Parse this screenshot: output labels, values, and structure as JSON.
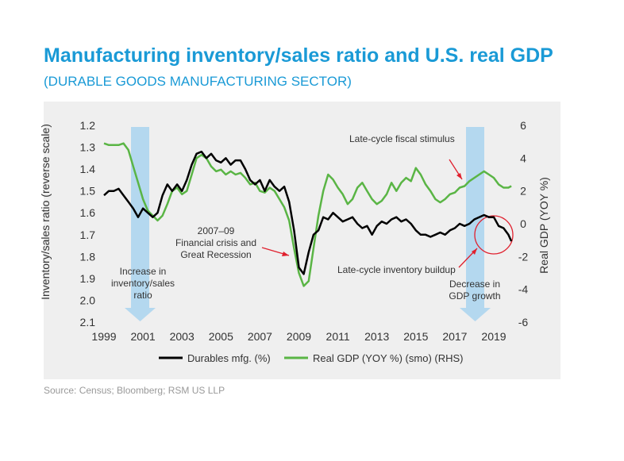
{
  "chart_data": {
    "type": "line",
    "title": "Manufacturing inventory/sales ratio and U.S. real GDP",
    "subtitle": "(DURABLE GOODS MANUFACTURING SECTOR)",
    "source": "Source: Census; Bloomberg; RSM US LLP",
    "y_label": "Inventory/sales ratio (reverse scale)",
    "y2_label": "Real GDP (YOY %)",
    "y_reversed": true,
    "xlim": [
      1999,
      2020.5
    ],
    "xticks": [
      1999,
      2001,
      2003,
      2005,
      2007,
      2009,
      2011,
      2013,
      2015,
      2017,
      2019
    ],
    "ylim": [
      1.2,
      2.1
    ],
    "yticks": [
      1.2,
      1.3,
      1.4,
      1.5,
      1.6,
      1.7,
      1.8,
      1.9,
      {
        "value": 2,
        "label": "2.0"
      },
      2.1
    ],
    "y2lim": [
      -6,
      6
    ],
    "y2ticks": [
      6,
      4,
      2,
      0,
      -2,
      -4,
      -6
    ],
    "annotations": [
      [
        "Late-cycle fiscal stimulus"
      ],
      [
        "2007–09",
        "Financial crisis and",
        "Great Recession"
      ],
      [
        "Late-cycle inventory buildup"
      ],
      [
        "Increase in",
        "inventory/sales",
        "ratio"
      ],
      [
        "Decrease in",
        "GDP growth"
      ]
    ],
    "x": [
      1999,
      1999.25,
      1999.5,
      1999.75,
      2000,
      2000.25,
      2000.5,
      2000.75,
      2001,
      2001.25,
      2001.5,
      2001.75,
      2002,
      2002.25,
      2002.5,
      2002.75,
      2003,
      2003.25,
      2003.5,
      2003.75,
      2004,
      2004.25,
      2004.5,
      2004.75,
      2005,
      2005.25,
      2005.5,
      2005.75,
      2006,
      2006.25,
      2006.5,
      2006.75,
      2007,
      2007.25,
      2007.5,
      2007.75,
      2008,
      2008.25,
      2008.5,
      2008.75,
      2009,
      2009.25,
      2009.5,
      2009.75,
      2010,
      2010.25,
      2010.5,
      2010.75,
      2011,
      2011.25,
      2011.5,
      2011.75,
      2012,
      2012.25,
      2012.5,
      2012.75,
      2013,
      2013.25,
      2013.5,
      2013.75,
      2014,
      2014.25,
      2014.5,
      2014.75,
      2015,
      2015.25,
      2015.5,
      2015.75,
      2016,
      2016.25,
      2016.5,
      2016.75,
      2017,
      2017.25,
      2017.5,
      2017.75,
      2018,
      2018.25,
      2018.5,
      2018.75,
      2019,
      2019.25,
      2019.5,
      2019.75,
      2019.9
    ],
    "series": [
      {
        "name": "Durables mfg. (%)",
        "color": "#000000",
        "values": [
          1.52,
          1.5,
          1.5,
          1.49,
          1.52,
          1.55,
          1.58,
          1.62,
          1.58,
          1.6,
          1.62,
          1.6,
          1.52,
          1.47,
          1.5,
          1.47,
          1.5,
          1.45,
          1.38,
          1.33,
          1.32,
          1.35,
          1.33,
          1.36,
          1.37,
          1.35,
          1.38,
          1.36,
          1.36,
          1.4,
          1.45,
          1.47,
          1.45,
          1.5,
          1.45,
          1.48,
          1.5,
          1.48,
          1.55,
          1.68,
          1.85,
          1.88,
          1.78,
          1.7,
          1.68,
          1.62,
          1.63,
          1.6,
          1.62,
          1.64,
          1.63,
          1.62,
          1.65,
          1.67,
          1.66,
          1.7,
          1.66,
          1.64,
          1.65,
          1.63,
          1.62,
          1.64,
          1.63,
          1.65,
          1.68,
          1.7,
          1.7,
          1.71,
          1.7,
          1.69,
          1.7,
          1.68,
          1.67,
          1.65,
          1.66,
          1.65,
          1.63,
          1.62,
          1.61,
          1.62,
          1.62,
          1.66,
          1.67,
          1.7,
          1.73
        ]
      },
      {
        "name": "Real GDP (YOY %) (smo) (RHS)",
        "color": "#5ab545",
        "axis": "y2",
        "values": [
          4.9,
          4.8,
          4.8,
          4.8,
          4.9,
          4.5,
          3.5,
          2.5,
          1.5,
          0.8,
          0.5,
          0.2,
          0.5,
          1.2,
          2.0,
          2.2,
          1.8,
          2.0,
          3.0,
          4.0,
          4.2,
          4.0,
          3.5,
          3.2,
          3.3,
          3.0,
          3.2,
          3.0,
          3.1,
          2.8,
          2.4,
          2.5,
          2.0,
          1.9,
          2.2,
          2.0,
          1.5,
          1.0,
          0.2,
          -1.5,
          -3.0,
          -3.8,
          -3.5,
          -1.5,
          0.5,
          2.0,
          3.0,
          2.7,
          2.2,
          1.8,
          1.2,
          1.5,
          2.2,
          2.5,
          2.0,
          1.5,
          1.2,
          1.4,
          1.8,
          2.5,
          2.0,
          2.5,
          2.8,
          2.6,
          3.4,
          3.0,
          2.4,
          2.0,
          1.5,
          1.3,
          1.5,
          1.8,
          1.9,
          2.2,
          2.3,
          2.6,
          2.8,
          3.0,
          3.2,
          3.0,
          2.8,
          2.4,
          2.2,
          2.2,
          2.3
        ]
      }
    ]
  }
}
